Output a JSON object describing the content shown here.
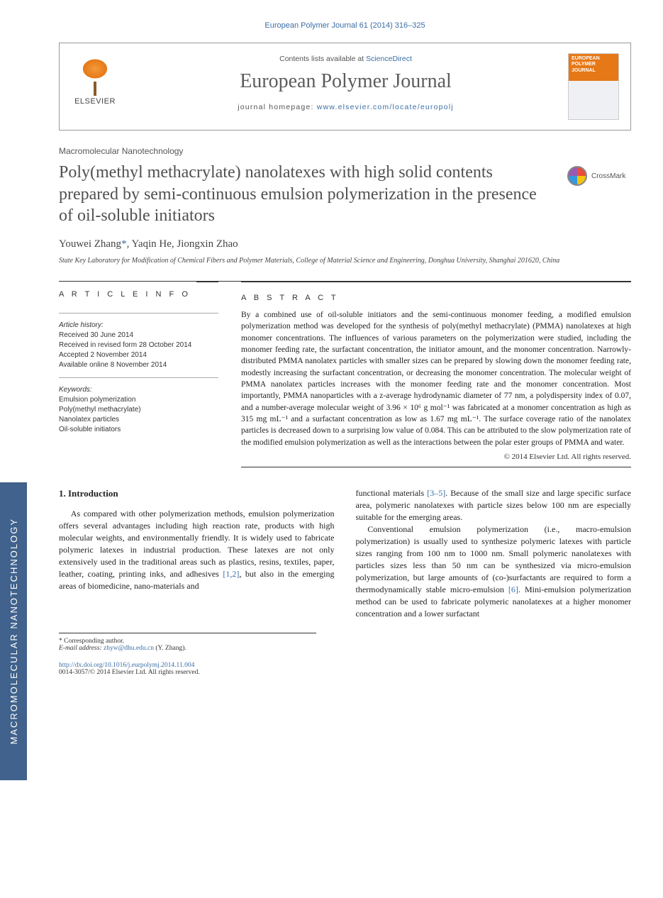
{
  "sideTab": "MACROMOLECULAR NANOTECHNOLOGY",
  "topRef": "European Polymer Journal 61 (2014) 316–325",
  "header": {
    "contentsPrefix": "Contents lists available at ",
    "scienceDirect": "ScienceDirect",
    "journalName": "European Polymer Journal",
    "homepagePrefix": "journal homepage: ",
    "homepageUrl": "www.elsevier.com/locate/europolj",
    "publisher": "ELSEVIER",
    "coverTop": "EUROPEAN POLYMER JOURNAL"
  },
  "sectionTag": "Macromolecular Nanotechnology",
  "title": "Poly(methyl methacrylate) nanolatexes with high solid contents prepared by semi-continuous emulsion polymerization in the presence of oil-soluble initiators",
  "crossmark": "CrossMark",
  "authors": {
    "a1": "Youwei Zhang",
    "ast": "*",
    "a2": ", Yaqin He, Jiongxin Zhao"
  },
  "affiliation": "State Key Laboratory for Modification of Chemical Fibers and Polymer Materials, College of Material Science and Engineering, Donghua University, Shanghai 201620, China",
  "info": {
    "heading": "A R T I C L E   I N F O",
    "historyLabel": "Article history:",
    "received": "Received 30 June 2014",
    "revised": "Received in revised form 28 October 2014",
    "accepted": "Accepted 2 November 2014",
    "online": "Available online 8 November 2014",
    "keywordsLabel": "Keywords:",
    "kw1": "Emulsion polymerization",
    "kw2": "Poly(methyl methacrylate)",
    "kw3": "Nanolatex particles",
    "kw4": "Oil-soluble initiators"
  },
  "abstract": {
    "heading": "A B S T R A C T",
    "text": "By a combined use of oil-soluble initiators and the semi-continuous monomer feeding, a modified emulsion polymerization method was developed for the synthesis of poly(methyl methacrylate) (PMMA) nanolatexes at high monomer concentrations. The influences of various parameters on the polymerization were studied, including the monomer feeding rate, the surfactant concentration, the initiator amount, and the monomer concentration. Narrowly-distributed PMMA nanolatex particles with smaller sizes can be prepared by slowing down the monomer feeding rate, modestly increasing the surfactant concentration, or decreasing the monomer concentration. The molecular weight of PMMA nanolatex particles increases with the monomer feeding rate and the monomer concentration. Most importantly, PMMA nanoparticles with a z-average hydrodynamic diameter of 77 nm, a polydispersity index of 0.07, and a number-average molecular weight of 3.96 × 10⁶ g mol⁻¹ was fabricated at a monomer concentration as high as 315 mg mL⁻¹ and a surfactant concentration as low as 1.67 mg mL⁻¹. The surface coverage ratio of the nanolatex particles is decreased down to a surprising low value of 0.084. This can be attributed to the slow polymerization rate of the modified emulsion polymerization as well as the interactions between the polar ester groups of PMMA and water.",
    "copyright": "© 2014 Elsevier Ltd. All rights reserved."
  },
  "body": {
    "introHeading": "1. Introduction",
    "p1a": "As compared with other polymerization methods, emulsion polymerization offers several advantages including high reaction rate, products with high molecular weights, and environmentally friendly. It is widely used to fabricate polymeric latexes in industrial production. These latexes are not only extensively used in the traditional areas such as plastics, resins, textiles, paper, leather, coating, printing inks, and adhesives ",
    "cite1": "[1,2]",
    "p1b": ", but also in the emerging areas of biomedicine, nano-materials and",
    "p2a": "functional materials ",
    "cite2": "[3–5]",
    "p2b": ". Because of the small size and large specific surface area, polymeric nanolatexes with particle sizes below 100 nm are especially suitable for the emerging areas.",
    "p3a": "Conventional emulsion polymerization (i.e., macro-emulsion polymerization) is usually used to synthesize polymeric latexes with particle sizes ranging from 100 nm to 1000 nm. Small polymeric nanolatexes with particles sizes less than 50 nm can be synthesized via micro-emulsion polymerization, but large amounts of (co-)surfactants are required to form a thermodynamically stable micro-emulsion ",
    "cite3": "[6]",
    "p3b": ". Mini-emulsion polymerization method can be used to fabricate polymeric nanolatexes at a higher monomer concentration and a lower surfactant"
  },
  "footnotes": {
    "corr": "* Corresponding author.",
    "emailLabel": "E-mail address: ",
    "email": "zhyw@dhu.edu.cn",
    "emailSuffix": " (Y. Zhang)."
  },
  "footer": {
    "doi": "http://dx.doi.org/10.1016/j.eurpolymj.2014.11.004",
    "issn": "0014-3057/© 2014 Elsevier Ltd. All rights reserved."
  }
}
